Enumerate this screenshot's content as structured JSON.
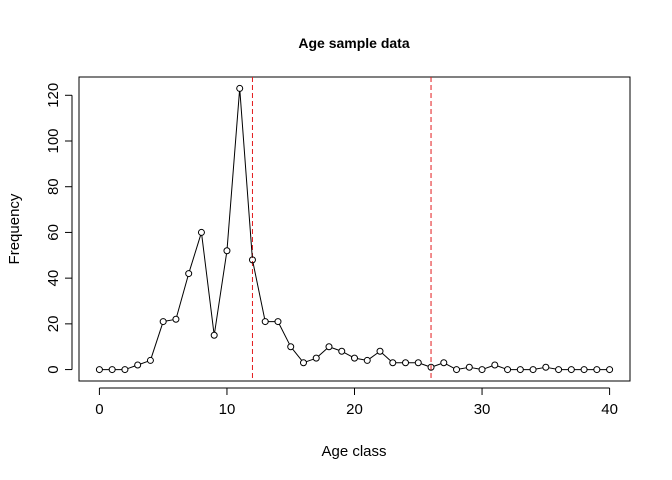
{
  "chart_data": {
    "type": "line",
    "title": "Age sample data",
    "xlabel": "Age class",
    "ylabel": "Frequency",
    "xlim": [
      -1.6,
      41.6
    ],
    "ylim": [
      -5,
      128
    ],
    "xticks": [
      0,
      10,
      20,
      30,
      40
    ],
    "yticks": [
      0,
      20,
      40,
      60,
      80,
      100,
      120
    ],
    "x": [
      0,
      1,
      2,
      3,
      4,
      5,
      6,
      7,
      8,
      9,
      10,
      11,
      12,
      13,
      14,
      15,
      16,
      17,
      18,
      19,
      20,
      21,
      22,
      23,
      24,
      25,
      26,
      27,
      28,
      29,
      30,
      31,
      32,
      33,
      34,
      35,
      36,
      37,
      38,
      39,
      40
    ],
    "series": [
      {
        "values": [
          0,
          0,
          0,
          2,
          4,
          21,
          22,
          42,
          60,
          15,
          52,
          123,
          48,
          21,
          21,
          10,
          3,
          5,
          10,
          8,
          5,
          4,
          8,
          3,
          3,
          3,
          1,
          3,
          0,
          1,
          0,
          2,
          0,
          0,
          0,
          1,
          0,
          0,
          0,
          0,
          0
        ],
        "color": "#000000",
        "marker": "open-circle"
      }
    ],
    "vlines": [
      {
        "x": 12,
        "color": "#e31a1c",
        "style": "dashed"
      },
      {
        "x": 26,
        "color": "#e31a1c",
        "style": "dashed"
      }
    ],
    "grid": false,
    "legend": "none"
  }
}
